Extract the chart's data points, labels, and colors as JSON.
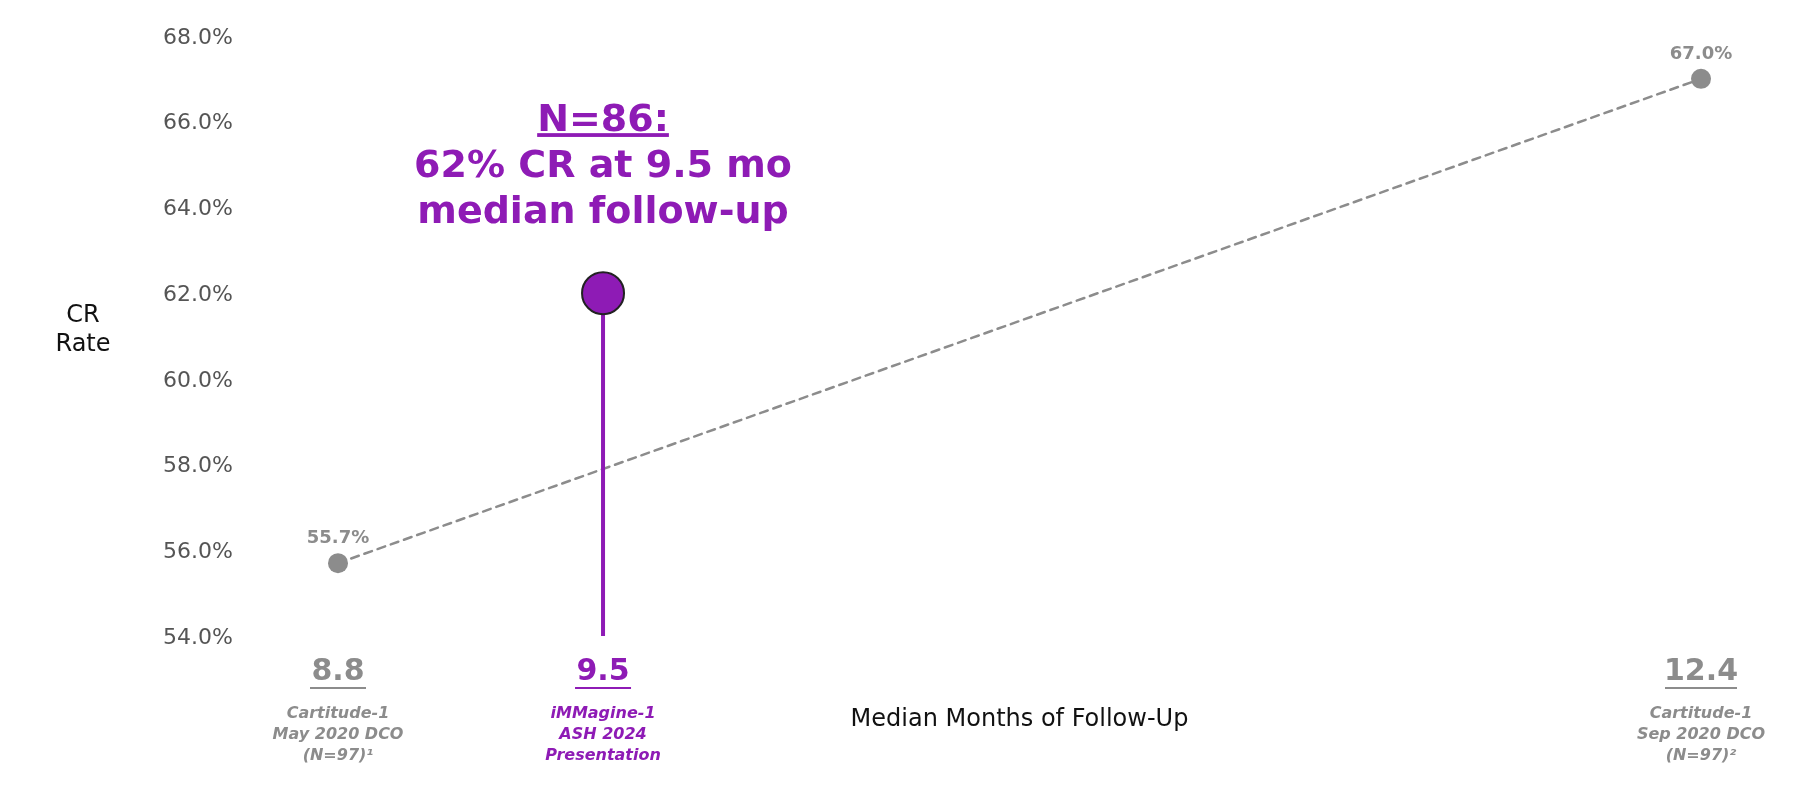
{
  "chart_data": {
    "type": "line",
    "xlabel": "Median Months of Follow-Up",
    "ylabel": "CR Rate",
    "xlim": [
      8.8,
      12.4
    ],
    "xticks": [
      {
        "value": 8.8,
        "label": "8.8"
      },
      {
        "value": 9.5,
        "label": "9.5"
      },
      {
        "value": 12.4,
        "label": "12.4"
      }
    ],
    "ylim": [
      54,
      68
    ],
    "yticks": [
      {
        "value": 54,
        "label": "54.0%"
      },
      {
        "value": 56,
        "label": "56.0%"
      },
      {
        "value": 58,
        "label": "58.0%"
      },
      {
        "value": 60,
        "label": "60.0%"
      },
      {
        "value": 62,
        "label": "62.0%"
      },
      {
        "value": 64,
        "label": "64.0%"
      },
      {
        "value": 66,
        "label": "66.0%"
      },
      {
        "value": 68,
        "label": "68.0%"
      }
    ],
    "grid": false,
    "series": [
      {
        "x": [
          8.8,
          12.4
        ],
        "values": [
          55.7,
          67.0
        ],
        "color": "#8c8c8c",
        "marker": "circle",
        "line_style": "dashed",
        "value_labels": [
          "55.7%",
          "67.0%"
        ]
      },
      {
        "type": "lollipop",
        "x": [
          9.5
        ],
        "values": [
          62
        ],
        "color": "#8e1bb5"
      }
    ],
    "annotations": [
      {
        "text": "N=86:\n62% CR at 9.5 mo\nmedian follow-up",
        "x": 9.5,
        "y": 62
      },
      "Cartitude-1\nMay 2020 DCO\n(N=97)¹",
      "iMMagine-1\nASH 2024\nPresentation",
      "Cartitude-1\nSep 2020 DCO\n(N=97)²"
    ]
  }
}
